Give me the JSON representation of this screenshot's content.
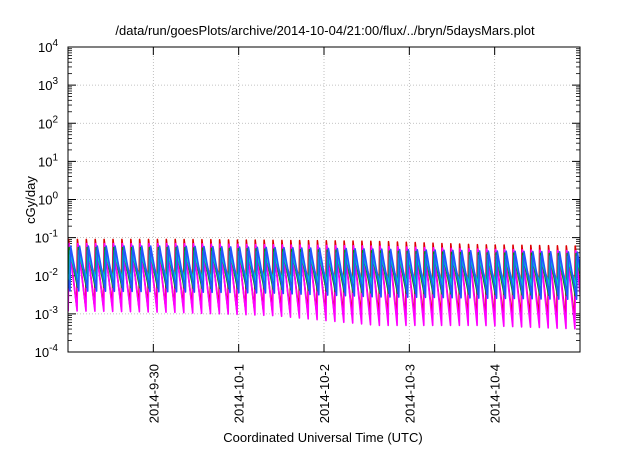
{
  "chart_data": {
    "type": "line",
    "title": "/data/run/goesPlots/archive/2014-10-04/21:00/flux/../bryn/5daysMars.plot",
    "xlabel": "Coordinated Universal Time (UTC)",
    "ylabel": "cGy/day",
    "yscale": "log",
    "ylim": [
      0.0001,
      10000
    ],
    "xlim": [
      "2014-09-29 00:00",
      "2014-10-05 00:00"
    ],
    "grid": true,
    "x_ticks": [
      {
        "label": "2014-9-30",
        "at": "2014-09-30 00:00"
      },
      {
        "label": "2014-10-1",
        "at": "2014-10-01 00:00"
      },
      {
        "label": "2014-10-2",
        "at": "2014-10-02 00:00"
      },
      {
        "label": "2014-10-3",
        "at": "2014-10-03 00:00"
      },
      {
        "label": "2014-10-4",
        "at": "2014-10-04 00:00"
      }
    ],
    "y_ticks": [
      {
        "base": "10",
        "exp": "-4",
        "value": 0.0001
      },
      {
        "base": "10",
        "exp": "-3",
        "value": 0.001
      },
      {
        "base": "10",
        "exp": "-2",
        "value": 0.01
      },
      {
        "base": "10",
        "exp": "-1",
        "value": 0.1
      },
      {
        "base": "10",
        "exp": "0",
        "value": 1
      },
      {
        "base": "10",
        "exp": "1",
        "value": 10
      },
      {
        "base": "10",
        "exp": "2",
        "value": 100
      },
      {
        "base": "10",
        "exp": "3",
        "value": 1000
      },
      {
        "base": "10",
        "exp": "4",
        "value": 10000
      }
    ],
    "sawtooth_period_hours": 2.5,
    "series": [
      {
        "color": "#dd0000",
        "peaks": [
          0.09,
          0.09,
          0.085,
          0.08,
          0.065,
          0.06
        ],
        "troughs": [
          0.0016,
          0.0015,
          0.0012,
          0.0008,
          0.0008,
          0.0007
        ]
      },
      {
        "color": "#ff00ff",
        "peaks": [
          0.07,
          0.07,
          0.065,
          0.06,
          0.05,
          0.045
        ],
        "troughs": [
          0.0012,
          0.0011,
          0.0009,
          0.0005,
          0.0005,
          0.0004
        ]
      },
      {
        "color": "#009900",
        "peaks": [
          0.055,
          0.055,
          0.05,
          0.045,
          0.04,
          0.038
        ],
        "troughs": [
          0.005,
          0.0048,
          0.0045,
          0.0035,
          0.0033,
          0.003
        ]
      },
      {
        "color": "#009999",
        "peaks": [
          0.045,
          0.045,
          0.042,
          0.038,
          0.034,
          0.032
        ],
        "troughs": [
          0.006,
          0.0058,
          0.0055,
          0.0045,
          0.0042,
          0.004
        ]
      },
      {
        "color": "#00cccc",
        "peaks": [
          0.035,
          0.035,
          0.032,
          0.03,
          0.027,
          0.025
        ],
        "troughs": [
          0.008,
          0.0078,
          0.0075,
          0.006,
          0.0058,
          0.0055
        ]
      },
      {
        "color": "#2255ff",
        "peaks": [
          0.06,
          0.06,
          0.055,
          0.05,
          0.045,
          0.042
        ],
        "troughs": [
          0.004,
          0.0038,
          0.0035,
          0.0028,
          0.0026,
          0.0024
        ]
      }
    ]
  }
}
